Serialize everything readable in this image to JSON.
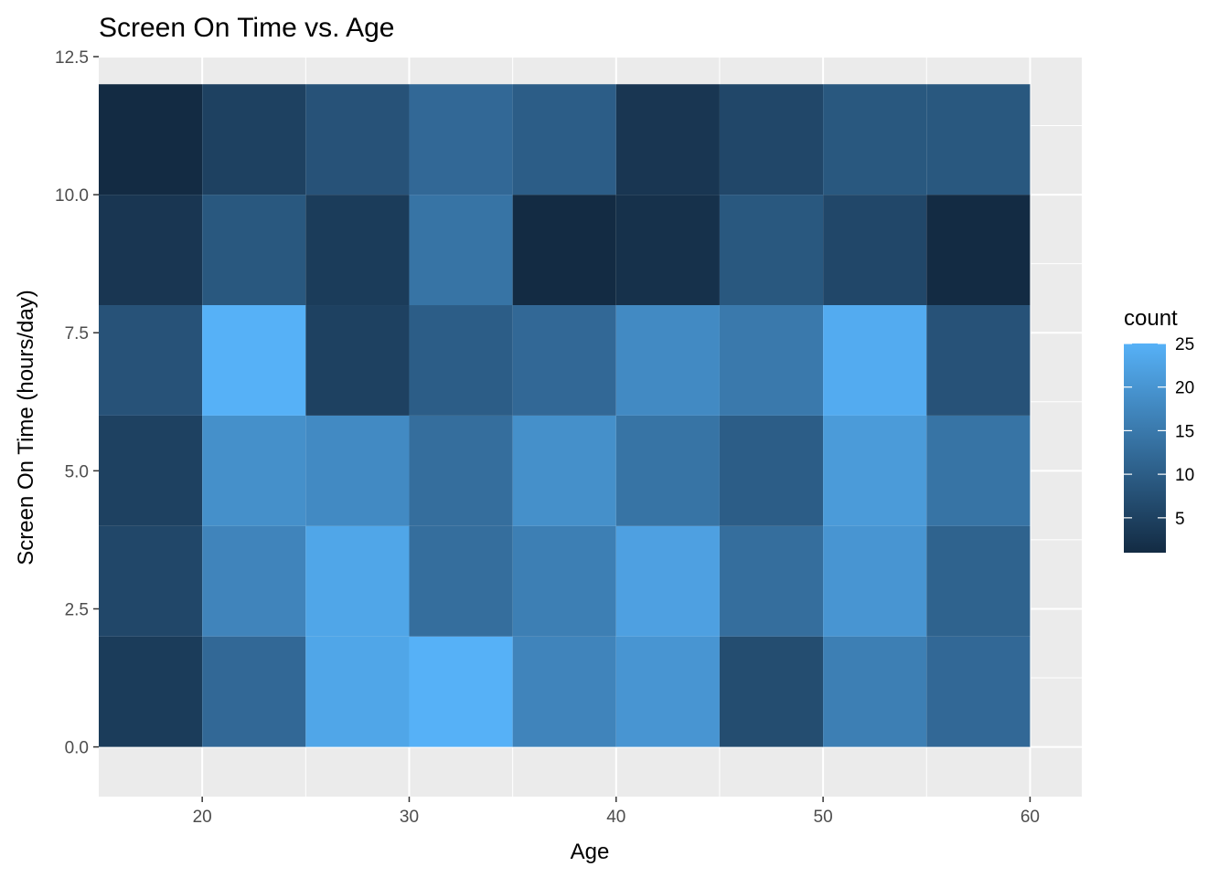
{
  "chart_data": {
    "type": "heatmap",
    "title": "Screen On Time vs. Age",
    "xlabel": "Age",
    "ylabel": "Screen On Time (hours/day)",
    "xlim": [
      15,
      62.5
    ],
    "ylim": [
      -0.9,
      12.5
    ],
    "x_ticks": [
      20,
      30,
      40,
      50,
      60
    ],
    "x_tick_labels": [
      "20",
      "30",
      "40",
      "50",
      "60"
    ],
    "y_ticks": [
      0,
      2.5,
      5,
      7.5,
      10,
      12.5
    ],
    "y_tick_labels": [
      "0.0",
      "2.5",
      "5.0",
      "7.5",
      "10.0",
      "12.5"
    ],
    "x_bins": [
      15,
      20,
      25,
      30,
      35,
      40,
      45,
      50,
      55,
      60
    ],
    "y_bins": [
      0,
      2,
      4,
      6,
      8,
      10,
      12
    ],
    "counts": [
      [
        4,
        12,
        23,
        25,
        17,
        20,
        7,
        16,
        12
      ],
      [
        6,
        17,
        23,
        13,
        16,
        22,
        13,
        20,
        11
      ],
      [
        5,
        19,
        18,
        13,
        19,
        14,
        10,
        21,
        14
      ],
      [
        8,
        25,
        5,
        10,
        12,
        18,
        15,
        24,
        8
      ],
      [
        3,
        9,
        4,
        14,
        1,
        2,
        9,
        6,
        1
      ],
      [
        1,
        5,
        8,
        12,
        10,
        3,
        6,
        9,
        9
      ]
    ],
    "legend": {
      "title": "count",
      "min": 1,
      "max": 25,
      "ticks": [
        5,
        10,
        15,
        20,
        25
      ],
      "tick_labels": [
        "5",
        "10",
        "15",
        "20",
        "25"
      ],
      "low_color": "#132B43",
      "high_color": "#56B1F7",
      "placement": "right"
    },
    "panel_background": "#ebebeb",
    "grid_color": "#ffffff",
    "grid": true
  }
}
